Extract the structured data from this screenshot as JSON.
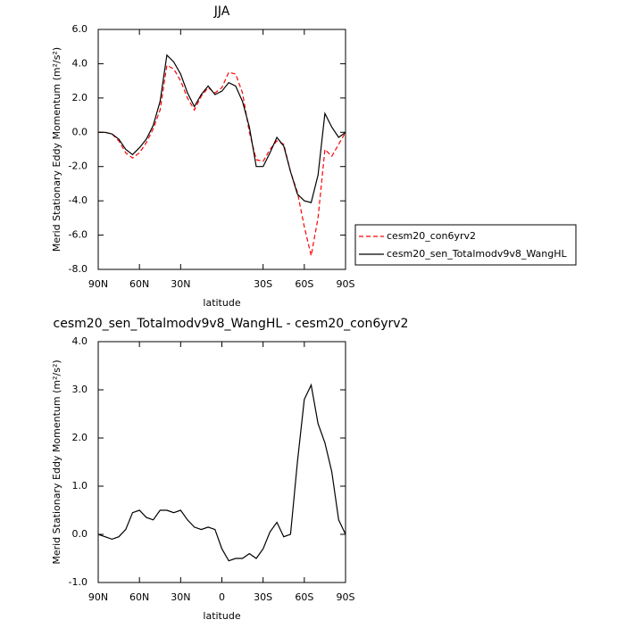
{
  "chart_data": [
    {
      "type": "line",
      "title": "JJA",
      "x_label": "latitude",
      "y_label": "Merid Stationary Eddy Momentum (m²/s²)",
      "x": [
        90,
        85,
        80,
        75,
        70,
        65,
        60,
        55,
        50,
        45,
        40,
        35,
        30,
        25,
        20,
        15,
        10,
        5,
        0,
        -5,
        -10,
        -15,
        -20,
        -25,
        -30,
        -35,
        -40,
        -45,
        -50,
        -55,
        -60,
        -65,
        -70,
        -75,
        -80,
        -85,
        -90
      ],
      "series": [
        {
          "name": "cesm20_con6yrv2",
          "color": "#ff0000",
          "dash": true,
          "values": [
            0.0,
            0.0,
            -0.1,
            -0.5,
            -1.2,
            -1.5,
            -1.2,
            -0.6,
            0.2,
            1.3,
            3.9,
            3.7,
            3.0,
            2.0,
            1.3,
            2.1,
            2.6,
            2.3,
            2.6,
            3.5,
            3.4,
            2.3,
            0.0,
            -1.6,
            -1.7,
            -1.0,
            -0.5,
            -0.7,
            -2.3,
            -3.5,
            -5.5,
            -7.2,
            -5.0,
            -1.0,
            -1.4,
            -0.7,
            0.0
          ]
        },
        {
          "name": "cesm20_sen_Totalmodv9v8_WangHL",
          "color": "#000000",
          "dash": false,
          "values": [
            0.0,
            0.0,
            -0.1,
            -0.4,
            -1.0,
            -1.3,
            -0.9,
            -0.4,
            0.4,
            1.8,
            4.5,
            4.1,
            3.4,
            2.3,
            1.5,
            2.2,
            2.7,
            2.2,
            2.4,
            2.9,
            2.7,
            1.8,
            0.3,
            -2.0,
            -2.0,
            -1.2,
            -0.3,
            -0.8,
            -2.3,
            -3.6,
            -4.0,
            -4.1,
            -2.5,
            1.1,
            0.3,
            -0.3,
            0.0
          ]
        }
      ],
      "xlim": [
        90,
        -90
      ],
      "ylim": [
        -8,
        6
      ],
      "xticks": [
        {
          "value": 90,
          "label": "90N"
        },
        {
          "value": 60,
          "label": "60N"
        },
        {
          "value": 30,
          "label": "30N"
        },
        {
          "value": -30,
          "label": "30S"
        },
        {
          "value": -60,
          "label": "60S"
        },
        {
          "value": -90,
          "label": "90S"
        }
      ],
      "yticks": [
        {
          "value": 6,
          "label": "6.0"
        },
        {
          "value": 4,
          "label": "4.0"
        },
        {
          "value": 2,
          "label": "2.0"
        },
        {
          "value": 0,
          "label": "0.0"
        },
        {
          "value": -2,
          "label": "-2.0"
        },
        {
          "value": -4,
          "label": "-4.0"
        },
        {
          "value": -6,
          "label": "-6.0"
        },
        {
          "value": -8,
          "label": "-8.0"
        }
      ],
      "legend": "outside-right"
    },
    {
      "type": "line",
      "title": "cesm20_sen_Totalmodv9v8_WangHL - cesm20_con6yrv2",
      "x_label": "latitude",
      "y_label": "Merid Stationary Eddy Momentum (m²/s²)",
      "x": [
        90,
        85,
        80,
        75,
        70,
        65,
        60,
        55,
        50,
        45,
        40,
        35,
        30,
        25,
        20,
        15,
        10,
        5,
        0,
        -5,
        -10,
        -15,
        -20,
        -25,
        -30,
        -35,
        -40,
        -45,
        -50,
        -55,
        -60,
        -65,
        -70,
        -75,
        -80,
        -85,
        -90
      ],
      "series": [
        {
          "color": "#000000",
          "dash": false,
          "values": [
            0.0,
            -0.05,
            -0.1,
            -0.05,
            0.1,
            0.45,
            0.5,
            0.35,
            0.3,
            0.5,
            0.5,
            0.45,
            0.5,
            0.3,
            0.15,
            0.1,
            0.15,
            0.1,
            -0.3,
            -0.55,
            -0.5,
            -0.5,
            -0.4,
            -0.5,
            -0.3,
            0.05,
            0.25,
            -0.05,
            0.0,
            1.5,
            2.8,
            3.1,
            2.3,
            1.9,
            1.3,
            0.3,
            0.0
          ]
        }
      ],
      "xlim": [
        90,
        -90
      ],
      "ylim": [
        -1,
        4
      ],
      "xticks": [
        {
          "value": 90,
          "label": "90N"
        },
        {
          "value": 60,
          "label": "60N"
        },
        {
          "value": 30,
          "label": "30N"
        },
        0,
        {
          "value": -30,
          "label": "30S"
        },
        {
          "value": -60,
          "label": "60S"
        },
        {
          "value": -90,
          "label": "90S"
        }
      ],
      "yticks": [
        {
          "value": 4,
          "label": "4.0"
        },
        {
          "value": 3,
          "label": "3.0"
        },
        {
          "value": 2,
          "label": "2.0"
        },
        {
          "value": 1,
          "label": "1.0"
        },
        {
          "value": 0,
          "label": "0.0"
        },
        {
          "value": -1,
          "label": "-1.0"
        }
      ]
    }
  ]
}
